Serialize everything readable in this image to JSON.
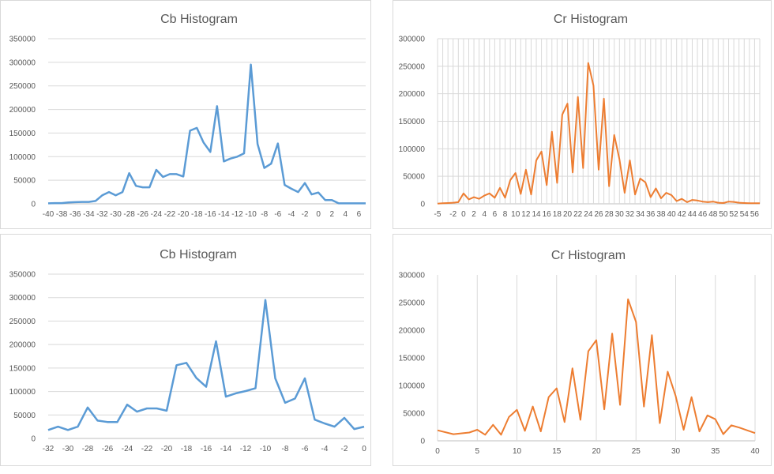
{
  "chart_data": [
    {
      "type": "line",
      "title": "Cb Histogram",
      "xlabel": "",
      "ylabel": "",
      "color": "#5b9bd5",
      "grid": "horizontal",
      "ylim": [
        0,
        350000
      ],
      "yticks": [
        0,
        50000,
        100000,
        150000,
        200000,
        250000,
        300000,
        350000
      ],
      "xticks": [
        "-40",
        "-38",
        "-36",
        "-34",
        "-32",
        "-30",
        "-28",
        "-26",
        "-24",
        "-22",
        "-20",
        "-18",
        "-16",
        "-14",
        "-12",
        "-10",
        "-8",
        "-6",
        "-4",
        "-2",
        "0",
        "2",
        "4",
        "6"
      ],
      "categories": [
        -40,
        -39,
        -38,
        -37,
        -36,
        -35,
        -34,
        -33,
        -32,
        -31,
        -30,
        -29,
        -28,
        -27,
        -26,
        -25,
        -24,
        -23,
        -22,
        -21,
        -20,
        -19,
        -18,
        -17,
        -16,
        -15,
        -14,
        -13,
        -12,
        -11,
        -10,
        -9,
        -8,
        -7,
        -6,
        -5,
        -4,
        -3,
        -2,
        -1,
        0,
        1,
        2,
        3,
        4,
        5,
        6,
        7
      ],
      "values": [
        1000,
        1500,
        1500,
        3000,
        3500,
        4000,
        4000,
        6000,
        18000,
        25000,
        18000,
        25000,
        65000,
        38000,
        35000,
        35000,
        72000,
        57000,
        63000,
        63000,
        58000,
        155000,
        161000,
        130000,
        110000,
        207000,
        90000,
        96000,
        100000,
        107000,
        295000,
        127000,
        76000,
        85000,
        128000,
        40000,
        32000,
        25000,
        44000,
        20000,
        24000,
        8000,
        8000,
        1000,
        1000,
        1000,
        1000,
        1000
      ]
    },
    {
      "type": "line",
      "title": "Cr Histogram",
      "xlabel": "",
      "ylabel": "",
      "color": "#ed7d31",
      "grid": "both",
      "ylim": [
        0,
        300000
      ],
      "yticks": [
        0,
        50000,
        100000,
        150000,
        200000,
        250000,
        300000
      ],
      "xticks": [
        "-5",
        "-2",
        "0",
        "2",
        "4",
        "6",
        "8",
        "10",
        "12",
        "14",
        "16",
        "18",
        "20",
        "22",
        "24",
        "26",
        "28",
        "30",
        "32",
        "34",
        "36",
        "38",
        "40",
        "42",
        "44",
        "46",
        "48",
        "50",
        "52",
        "54",
        "56"
      ],
      "categories": [
        -5,
        -4,
        -3,
        -2,
        -1,
        0,
        1,
        2,
        3,
        4,
        5,
        6,
        7,
        8,
        9,
        10,
        11,
        12,
        13,
        14,
        15,
        16,
        17,
        18,
        19,
        20,
        21,
        22,
        23,
        24,
        25,
        26,
        27,
        28,
        29,
        30,
        31,
        32,
        33,
        34,
        35,
        36,
        37,
        38,
        39,
        40,
        41,
        42,
        43,
        44,
        45,
        46,
        47,
        48,
        49,
        50,
        51,
        52,
        53,
        54,
        55,
        56,
        57
      ],
      "values": [
        500,
        1000,
        1500,
        2000,
        3000,
        19000,
        8000,
        12000,
        9000,
        15000,
        19000,
        11000,
        29000,
        11000,
        43000,
        56000,
        18000,
        62000,
        17000,
        79000,
        95000,
        34000,
        131000,
        38000,
        162000,
        182000,
        57000,
        194000,
        65000,
        256000,
        215000,
        62000,
        191000,
        32000,
        125000,
        81000,
        20000,
        79000,
        17000,
        46000,
        39000,
        12000,
        28000,
        10000,
        20000,
        16000,
        5000,
        9000,
        3000,
        7000,
        6000,
        4000,
        3000,
        4000,
        2000,
        1500,
        4000,
        3500,
        2000,
        1500,
        1000,
        1000,
        1000
      ]
    },
    {
      "type": "line",
      "title": "Cb Histogram",
      "xlabel": "",
      "ylabel": "",
      "color": "#5b9bd5",
      "grid": "horizontal",
      "ylim": [
        0,
        350000
      ],
      "yticks": [
        0,
        50000,
        100000,
        150000,
        200000,
        250000,
        300000,
        350000
      ],
      "xticks": [
        "-32",
        "-30",
        "-28",
        "-26",
        "-24",
        "-22",
        "-20",
        "-18",
        "-16",
        "-14",
        "-12",
        "-10",
        "-8",
        "-6",
        "-4",
        "-2",
        "0"
      ],
      "categories": [
        -32,
        -31,
        -30,
        -29,
        -28,
        -27,
        -26,
        -25,
        -24,
        -23,
        -22,
        -21,
        -20,
        -19,
        -18,
        -17,
        -16,
        -15,
        -14,
        -13,
        -12,
        -11,
        -10,
        -9,
        -8,
        -7,
        -6,
        -5,
        -4,
        -3,
        -2,
        -1,
        0
      ],
      "values": [
        18000,
        25000,
        18000,
        25000,
        66000,
        38000,
        35000,
        35000,
        72000,
        57000,
        64000,
        64000,
        59000,
        156000,
        161000,
        129000,
        110000,
        207000,
        89000,
        96000,
        101000,
        107000,
        295000,
        128000,
        76000,
        85000,
        128000,
        40000,
        32000,
        25000,
        44000,
        20000,
        25000
      ]
    },
    {
      "type": "line",
      "title": "Cr Histogram",
      "xlabel": "",
      "ylabel": "",
      "color": "#ed7d31",
      "grid": "vertical",
      "ylim": [
        0,
        300000
      ],
      "xlim": [
        0,
        40
      ],
      "yticks": [
        0,
        50000,
        100000,
        150000,
        200000,
        250000,
        300000
      ],
      "xticks": [
        0,
        5,
        10,
        15,
        20,
        25,
        30,
        35,
        40
      ],
      "x": [
        0,
        2,
        4,
        5,
        6,
        7,
        8,
        9,
        10,
        11,
        12,
        13,
        14,
        15,
        16,
        17,
        18,
        19,
        20,
        21,
        22,
        23,
        24,
        25,
        26,
        27,
        28,
        29,
        30,
        31,
        32,
        33,
        34,
        35,
        36,
        37,
        38,
        39,
        40
      ],
      "values": [
        19000,
        12000,
        15000,
        20000,
        11000,
        29000,
        11000,
        43000,
        56000,
        18000,
        62000,
        17000,
        79000,
        95000,
        34000,
        131000,
        38000,
        162000,
        182000,
        57000,
        194000,
        65000,
        256000,
        215000,
        62000,
        191000,
        32000,
        125000,
        81000,
        20000,
        79000,
        17000,
        46000,
        39000,
        12000,
        28000,
        24000,
        19000,
        14000
      ]
    }
  ]
}
